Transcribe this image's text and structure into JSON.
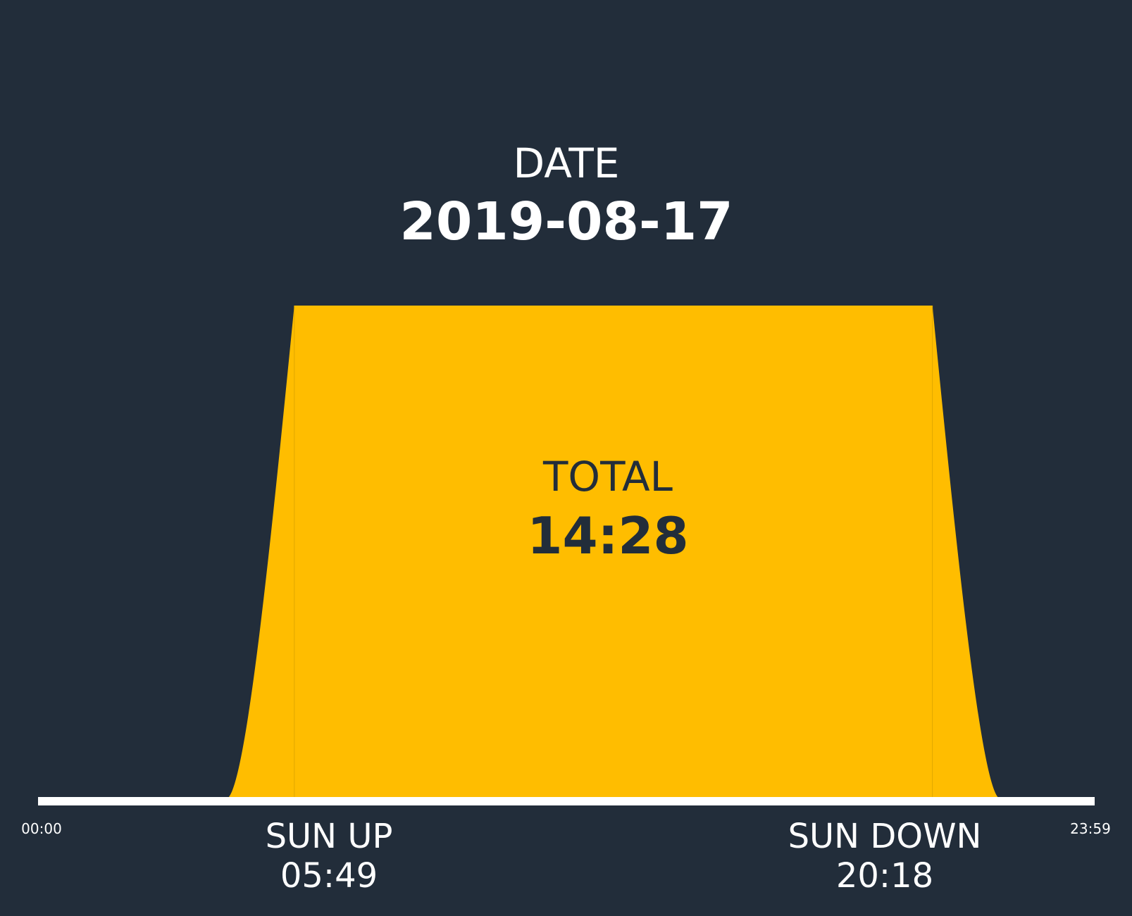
{
  "header": {
    "label": "DATE",
    "value": "2019-08-17"
  },
  "total": {
    "label": "TOTAL",
    "value": "14:28"
  },
  "sunrise": {
    "label": "SUN UP",
    "value": "05:49"
  },
  "sunset": {
    "label": "SUN DOWN",
    "value": "20:18"
  },
  "colors": {
    "background": "#222d3a",
    "daylight": "#ffbd00",
    "axis": "#ffffff",
    "dark_text": "#222d3a"
  },
  "chart_data": {
    "type": "area",
    "xlim": [
      "00:00",
      "23:59"
    ],
    "x_tick_labels": [
      "00:00",
      "23:59"
    ],
    "sunrise": "05:49",
    "sunset": "20:18",
    "ramp_start": "04:20",
    "ramp_end": "21:47",
    "ylim": [
      0,
      1
    ],
    "grid": false,
    "legend": "none"
  }
}
